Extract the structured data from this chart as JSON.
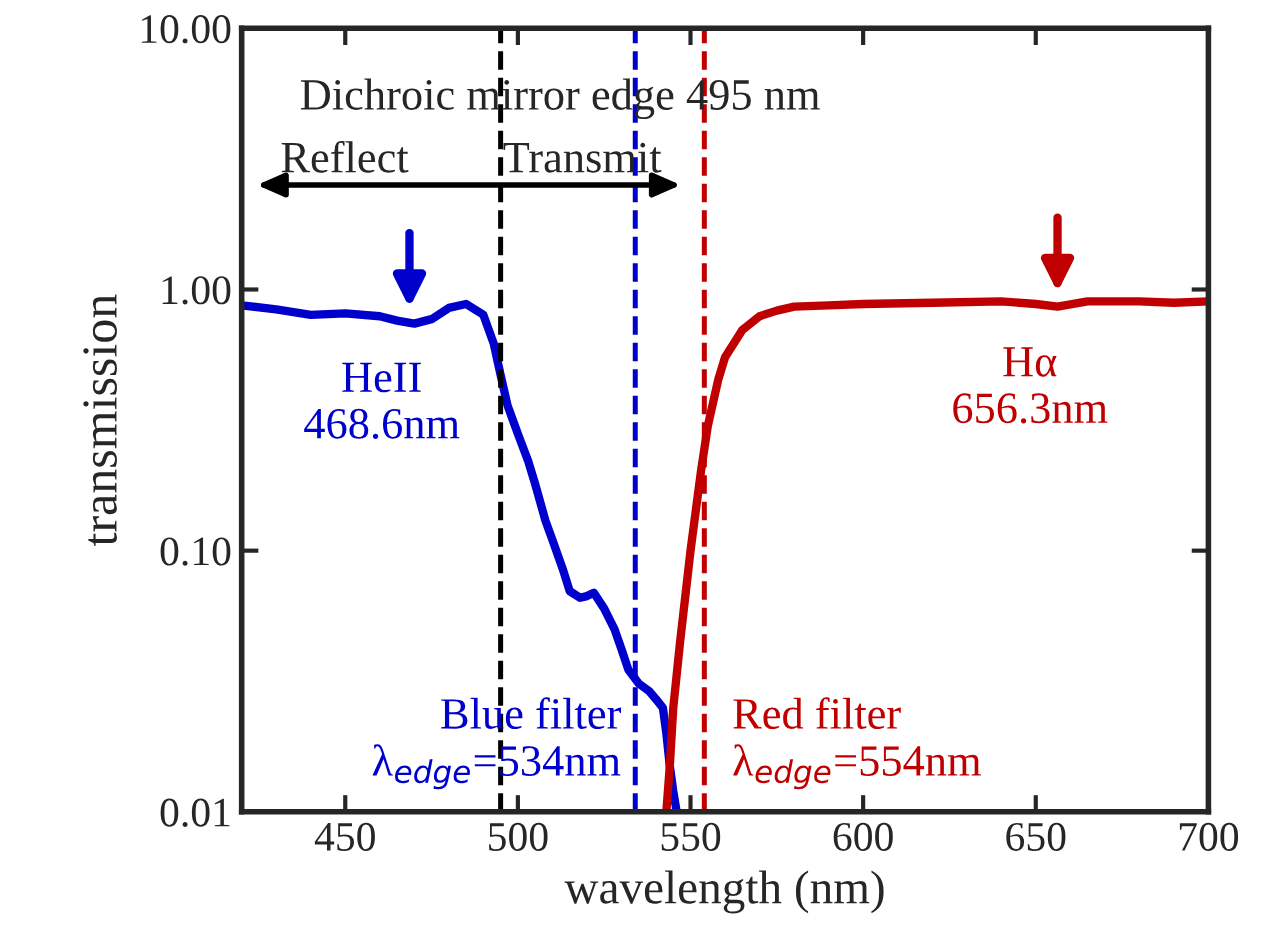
{
  "chart_data": {
    "type": "line",
    "xlabel": "wavelength (nm)",
    "ylabel": "transmission",
    "series": [
      {
        "color": "#0000cc",
        "x": [
          420,
          430,
          440,
          450,
          460,
          465,
          470,
          475,
          480,
          485,
          490,
          493,
          495,
          497,
          500,
          503,
          505,
          508,
          510,
          513,
          515,
          518,
          520,
          522,
          525,
          528,
          530,
          532,
          535,
          538,
          540,
          542,
          543,
          544,
          545,
          546
        ],
        "values": [
          0.87,
          0.84,
          0.8,
          0.81,
          0.79,
          0.76,
          0.74,
          0.77,
          0.85,
          0.88,
          0.8,
          0.62,
          0.47,
          0.36,
          0.28,
          0.22,
          0.18,
          0.13,
          0.11,
          0.085,
          0.07,
          0.066,
          0.067,
          0.069,
          0.06,
          0.05,
          0.042,
          0.035,
          0.031,
          0.029,
          0.027,
          0.025,
          0.02,
          0.015,
          0.012,
          0.01
        ]
      },
      {
        "color": "#c00000",
        "x": [
          543,
          544,
          545,
          547,
          550,
          553,
          555,
          558,
          560,
          565,
          570,
          575,
          580,
          590,
          600,
          620,
          640,
          650,
          656.3,
          665,
          680,
          690,
          700
        ],
        "values": [
          0.01,
          0.015,
          0.025,
          0.045,
          0.1,
          0.2,
          0.3,
          0.45,
          0.55,
          0.7,
          0.79,
          0.83,
          0.86,
          0.87,
          0.88,
          0.89,
          0.9,
          0.88,
          0.86,
          0.9,
          0.9,
          0.89,
          0.9
        ]
      }
    ],
    "xlim": [
      420,
      700
    ],
    "xticks": [
      450,
      500,
      550,
      600,
      650,
      700
    ],
    "ylim": [
      0.01,
      10
    ],
    "log": true,
    "yticks": [
      {
        "value": 0.01,
        "label": "0.01"
      },
      {
        "value": 0.1,
        "label": "0.10"
      },
      {
        "value": 1,
        "label": "1.00"
      },
      {
        "value": 10,
        "label": "10.00"
      }
    ],
    "ref_lines": [
      {
        "axis": "x",
        "value": 495,
        "color": "#000000",
        "line_style": "dashed"
      },
      {
        "axis": "x",
        "value": 534,
        "color": "#0000cc",
        "line_style": "dashed"
      },
      {
        "axis": "x",
        "value": 554,
        "color": "#c00000",
        "line_style": "dashed"
      }
    ],
    "annotations": [
      "Dichroic mirror edge 495 nm",
      "Reflect",
      "Transmit",
      {
        "text": "HeII\n468.6nm",
        "x": 468.6,
        "y": 0.75
      },
      {
        "text": "Hα\n656.3nm",
        "x": 656.3,
        "y": 0.86
      },
      {
        "text": "Blue filter\nλ$_{edge}$=534nm",
        "x": 534,
        "y": 0.01
      },
      {
        "text": "Red filter\nλ$_{edge}$=554nm",
        "x": 554,
        "y": 0.01
      }
    ],
    "grid": false,
    "legend": false
  }
}
